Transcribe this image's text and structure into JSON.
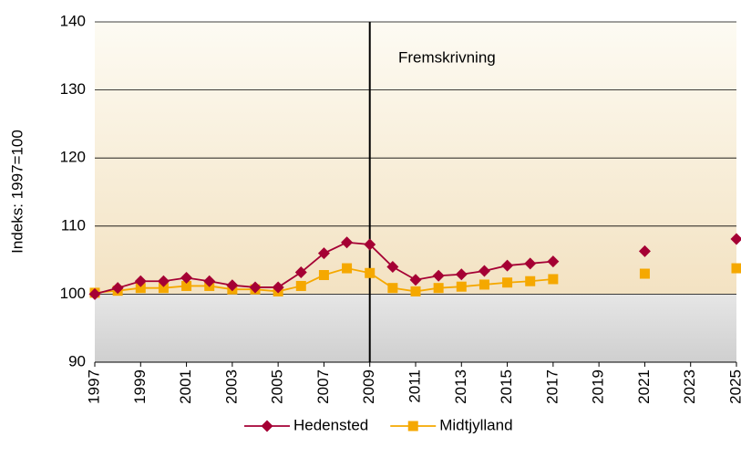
{
  "chart_data": {
    "type": "line",
    "ylabel": "Indeks: 1997=100",
    "annotation": "Fremskrivning",
    "forecast_start": 2009,
    "x": [
      1997,
      1998,
      1999,
      2000,
      2001,
      2002,
      2003,
      2004,
      2005,
      2006,
      2007,
      2008,
      2009,
      2010,
      2011,
      2012,
      2013,
      2014,
      2015,
      2016,
      2017,
      2018,
      2019,
      2020,
      2021,
      2022,
      2023,
      2024,
      2025
    ],
    "series": [
      {
        "name": "Hedensted",
        "color": "#a50034",
        "marker": "diamond",
        "values": [
          100.0,
          100.9,
          101.9,
          101.9,
          102.4,
          101.9,
          101.3,
          101.0,
          101.0,
          103.2,
          106.0,
          107.6,
          107.3,
          104.0,
          102.1,
          102.7,
          102.9,
          103.4,
          104.2,
          104.5,
          104.8,
          null,
          null,
          null,
          106.3,
          null,
          null,
          null,
          108.1
        ]
      },
      {
        "name": "Midtjylland",
        "color": "#f5a800",
        "marker": "square",
        "values": [
          100.2,
          100.5,
          100.9,
          100.9,
          101.2,
          101.2,
          100.7,
          100.7,
          100.4,
          101.2,
          102.8,
          103.8,
          103.1,
          100.9,
          100.4,
          100.9,
          101.1,
          101.4,
          101.7,
          101.9,
          102.2,
          null,
          null,
          null,
          103.0,
          null,
          null,
          null,
          103.8
        ]
      }
    ],
    "xlim": [
      1997,
      2025
    ],
    "xticks": [
      1997,
      1999,
      2001,
      2003,
      2005,
      2007,
      2009,
      2011,
      2013,
      2015,
      2017,
      2019,
      2021,
      2023,
      2025
    ],
    "ylim": [
      90,
      140
    ],
    "yticks": [
      90,
      100,
      110,
      120,
      130,
      140
    ],
    "grid": true,
    "legend": "bottom"
  }
}
